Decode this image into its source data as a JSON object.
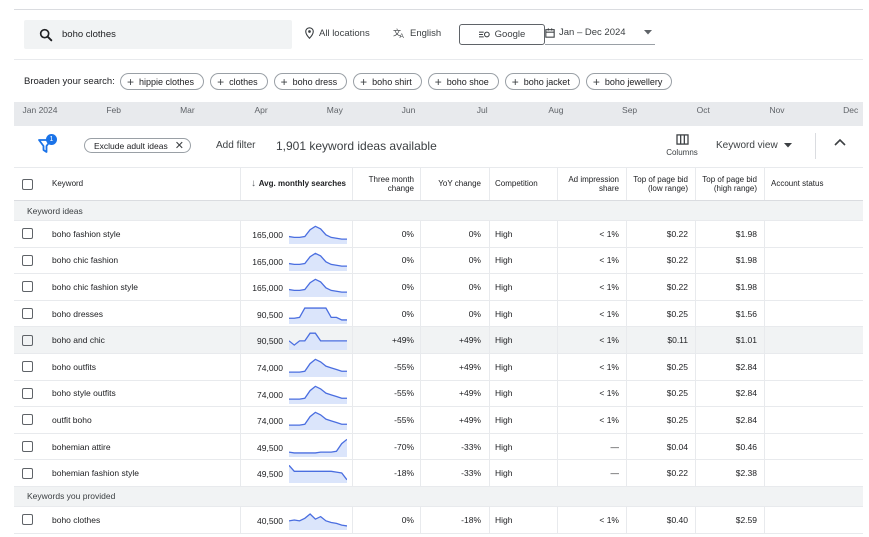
{
  "search": {
    "query": "boho clothes"
  },
  "toolbar": {
    "location": "All locations",
    "language": "English",
    "network": "Google",
    "date_range": "Jan – Dec 2024"
  },
  "broaden": {
    "label": "Broaden your search:",
    "chips": [
      "hippie clothes",
      "clothes",
      "boho dress",
      "boho shirt",
      "boho shoe",
      "boho jacket",
      "boho jewellery"
    ]
  },
  "timeline": [
    "Jan 2024",
    "Feb",
    "Mar",
    "Apr",
    "May",
    "Jun",
    "Jul",
    "Aug",
    "Sep",
    "Oct",
    "Nov",
    "Dec"
  ],
  "filters": {
    "badge_count": "1",
    "exclude_chip": "Exclude adult ideas",
    "add_filter": "Add filter",
    "ideas_count": "1,901 keyword ideas available",
    "columns_label": "Columns",
    "view_label": "Keyword view"
  },
  "table": {
    "headers": {
      "keyword": "Keyword",
      "avg_monthly": "Avg. monthly searches",
      "three_month": "Three month change",
      "yoy": "YoY change",
      "competition": "Competition",
      "ad_impression": "Ad impression share",
      "bid_low": "Top of page bid (low range)",
      "bid_high": "Top of page bid (high range)",
      "account_status": "Account status"
    },
    "section_ideas": "Keyword ideas",
    "section_provided": "Keywords you provided",
    "ideas": [
      {
        "keyword": "boho fashion style",
        "searches": "165,000",
        "three_month": "0%",
        "yoy": "0%",
        "competition": "High",
        "impression": "< 1%",
        "bid_low": "$0.22",
        "bid_high": "$1.98",
        "trend": [
          0.35,
          0.3,
          0.3,
          0.35,
          0.75,
          0.95,
          0.8,
          0.45,
          0.3,
          0.25,
          0.2,
          0.2
        ]
      },
      {
        "keyword": "boho chic fashion",
        "searches": "165,000",
        "three_month": "0%",
        "yoy": "0%",
        "competition": "High",
        "impression": "< 1%",
        "bid_low": "$0.22",
        "bid_high": "$1.98",
        "trend": [
          0.35,
          0.3,
          0.3,
          0.35,
          0.75,
          0.95,
          0.8,
          0.45,
          0.3,
          0.25,
          0.2,
          0.2
        ]
      },
      {
        "keyword": "boho chic fashion style",
        "searches": "165,000",
        "three_month": "0%",
        "yoy": "0%",
        "competition": "High",
        "impression": "< 1%",
        "bid_low": "$0.22",
        "bid_high": "$1.98",
        "trend": [
          0.35,
          0.3,
          0.3,
          0.35,
          0.75,
          0.95,
          0.8,
          0.45,
          0.3,
          0.25,
          0.2,
          0.2
        ]
      },
      {
        "keyword": "boho dresses",
        "searches": "90,500",
        "three_month": "0%",
        "yoy": "0%",
        "competition": "High",
        "impression": "< 1%",
        "bid_low": "$0.25",
        "bid_high": "$1.56",
        "trend": [
          0.25,
          0.25,
          0.3,
          0.85,
          0.85,
          0.85,
          0.85,
          0.85,
          0.3,
          0.3,
          0.15,
          0.15
        ]
      },
      {
        "keyword": "boho and chic",
        "searches": "90,500",
        "three_month": "+49%",
        "yoy": "+49%",
        "competition": "High",
        "impression": "< 1%",
        "bid_low": "$0.11",
        "bid_high": "$1.01",
        "trend": [
          0.45,
          0.2,
          0.45,
          0.45,
          0.9,
          0.9,
          0.45,
          0.45,
          0.45,
          0.45,
          0.45,
          0.45
        ]
      },
      {
        "keyword": "boho outfits",
        "searches": "74,000",
        "three_month": "-55%",
        "yoy": "+49%",
        "competition": "High",
        "impression": "< 1%",
        "bid_low": "$0.25",
        "bid_high": "$2.84",
        "trend": [
          0.2,
          0.2,
          0.2,
          0.25,
          0.7,
          0.95,
          0.8,
          0.55,
          0.45,
          0.35,
          0.25,
          0.25
        ]
      },
      {
        "keyword": "boho style outfits",
        "searches": "74,000",
        "three_month": "-55%",
        "yoy": "+49%",
        "competition": "High",
        "impression": "< 1%",
        "bid_low": "$0.25",
        "bid_high": "$2.84",
        "trend": [
          0.2,
          0.2,
          0.2,
          0.25,
          0.7,
          0.95,
          0.8,
          0.55,
          0.45,
          0.35,
          0.25,
          0.25
        ]
      },
      {
        "keyword": "outfit boho",
        "searches": "74,000",
        "three_month": "-55%",
        "yoy": "+49%",
        "competition": "High",
        "impression": "< 1%",
        "bid_low": "$0.25",
        "bid_high": "$2.84",
        "trend": [
          0.2,
          0.2,
          0.2,
          0.25,
          0.7,
          0.95,
          0.8,
          0.55,
          0.45,
          0.35,
          0.25,
          0.25
        ]
      },
      {
        "keyword": "bohemian attire",
        "searches": "49,500",
        "three_month": "-70%",
        "yoy": "-33%",
        "competition": "High",
        "impression": "—",
        "bid_low": "$0.04",
        "bid_high": "$0.46",
        "trend": [
          0.2,
          0.15,
          0.15,
          0.15,
          0.15,
          0.15,
          0.2,
          0.2,
          0.2,
          0.25,
          0.7,
          0.95
        ]
      },
      {
        "keyword": "bohemian fashion style",
        "searches": "49,500",
        "three_month": "-18%",
        "yoy": "-33%",
        "competition": "High",
        "impression": "—",
        "bid_low": "$0.22",
        "bid_high": "$2.38",
        "trend": [
          0.95,
          0.6,
          0.6,
          0.6,
          0.6,
          0.6,
          0.6,
          0.6,
          0.6,
          0.55,
          0.5,
          0.1
        ]
      }
    ],
    "provided": [
      {
        "keyword": "boho clothes",
        "searches": "40,500",
        "three_month": "0%",
        "yoy": "-18%",
        "competition": "High",
        "impression": "< 1%",
        "bid_low": "$0.40",
        "bid_high": "$2.59",
        "trend": [
          0.45,
          0.5,
          0.45,
          0.6,
          0.85,
          0.55,
          0.7,
          0.45,
          0.35,
          0.3,
          0.2,
          0.15
        ]
      }
    ]
  },
  "colors": {
    "accent": "#1a73e8",
    "spark_line": "#4a6ee0",
    "spark_fill": "#dbe5fb"
  }
}
